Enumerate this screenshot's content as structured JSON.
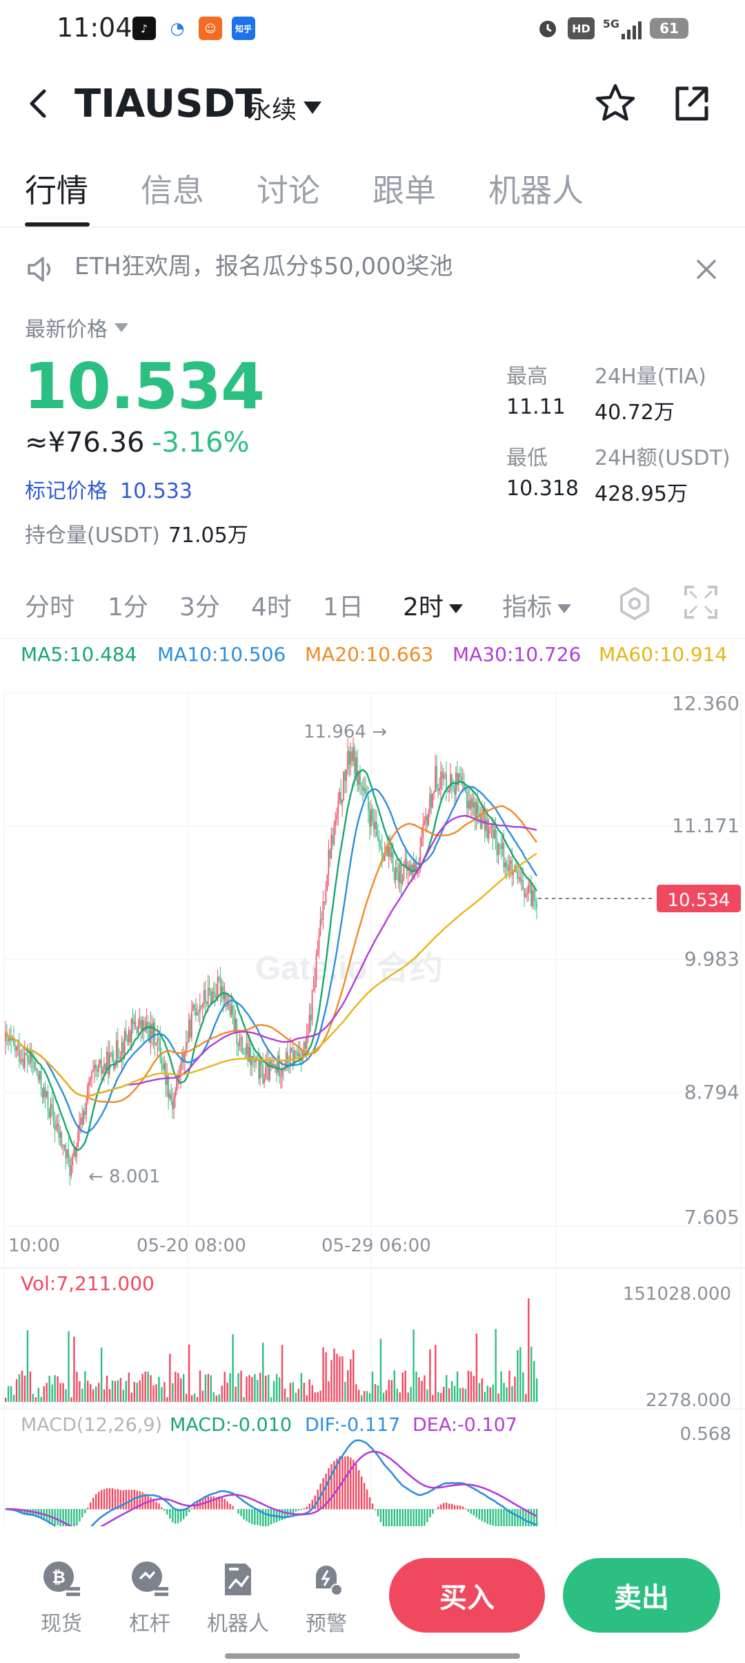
{
  "status_bar": {
    "time": "11:04",
    "apps": [
      "tiktok-app-icon",
      "browser-app-icon",
      "orange-app-icon",
      "zhihu-app-icon"
    ],
    "zhihu_label": "知乎",
    "network": "5G",
    "hd": "HD",
    "battery": "61"
  },
  "header": {
    "pair": "TIAUSDT",
    "contract_type": "永续"
  },
  "tabs": [
    "行情",
    "信息",
    "讨论",
    "跟单",
    "机器人"
  ],
  "notice": {
    "text": "ETH狂欢周，报名瓜分$50,000奖池"
  },
  "ticker": {
    "last_price_label": "最新价格",
    "last_price": "10.534",
    "cny_price": "≈¥76.36",
    "change_pct": "-3.16%",
    "mark_price_label": "标记价格",
    "mark_price": "10.533",
    "open_interest_label": "持仓量(USDT)",
    "open_interest": "71.05万",
    "high_label": "最高",
    "high": "11.11",
    "low_label": "最低",
    "low": "10.318",
    "vol_label": "24H量(TIA)",
    "vol": "40.72万",
    "turnover_label": "24H额(USDT)",
    "turnover": "428.95万"
  },
  "intervals": {
    "items": [
      "分时",
      "1分",
      "3分",
      "4时",
      "1日"
    ],
    "active": "2时",
    "indicator": "指标"
  },
  "ma_legend": [
    {
      "label": "MA5:10.484",
      "color": "#17a66f"
    },
    {
      "label": "MA10:10.506",
      "color": "#2a8ee0"
    },
    {
      "label": "MA20:10.663",
      "color": "#f08a24"
    },
    {
      "label": "MA30:10.726",
      "color": "#b43bd6"
    },
    {
      "label": "MA60:10.914",
      "color": "#e7b416"
    }
  ],
  "chart": {
    "price_ticks": [
      "12.360",
      "11.171",
      "9.983",
      "8.794",
      "7.605"
    ],
    "current_price_tag": "10.534",
    "high_marker": "11.964 →",
    "low_marker": "← 8.001",
    "time_labels": [
      "10:00",
      "05-20 08:00",
      "05-29 06:00"
    ],
    "watermark": "Gate.io 合约",
    "vol_label": "Vol:7,211.000",
    "vol_ticks": [
      "151028.000",
      "2278.000"
    ],
    "macd_header": "MACD(12,26,9)",
    "macd_value": "MACD:-0.010",
    "dif_value": "DIF:-0.117",
    "dea_value": "DEA:-0.107",
    "macd_tick": "0.568",
    "up_color": "#f0485f",
    "down_color": "#2bbf81"
  },
  "bottom_nav": {
    "items": [
      "现货",
      "杠杆",
      "机器人",
      "预警"
    ],
    "buy": "买入",
    "sell": "卖出"
  }
}
